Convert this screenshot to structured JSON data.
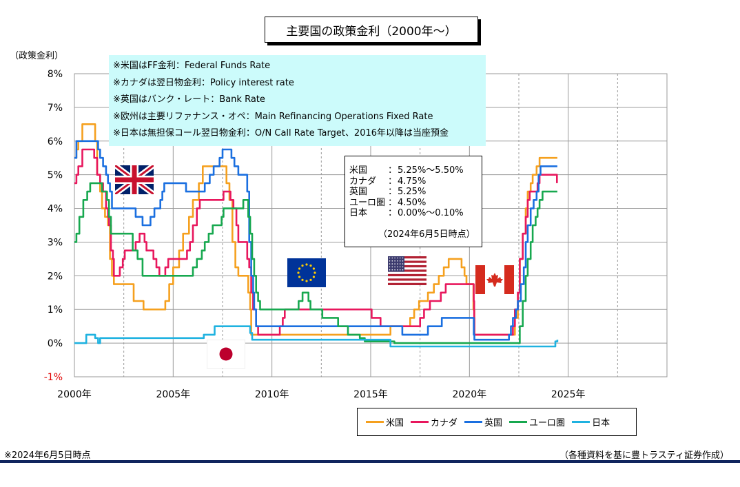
{
  "title": "主要国の政策金利（2000年～）",
  "notes": [
    "※米国はFF金利：Federal Funds Rate",
    "※カナダは翌日物金利：Policy interest rate",
    "※英国はバンク・レート：Bank Rate",
    "※欧州は主要リファナンス・オペ：Main Refinancing Operations Fixed Rate",
    "※日本は無担保コール翌日物金利：O/N Call Rate Target、2016年以降は当座預金"
  ],
  "rates_box": {
    "rows": [
      {
        "name": "米国",
        "sep": "：",
        "value": "5.25%～5.50%"
      },
      {
        "name": "カナダ",
        "sep": "：",
        "value": "4.75%"
      },
      {
        "name": "英国",
        "sep": "：",
        "value": "5.25%"
      },
      {
        "name": "ユーロ圏",
        "sep": "：",
        "value": "4.50%"
      },
      {
        "name": "日本",
        "sep": "：",
        "value": "0.00%～0.10%"
      }
    ],
    "date": "（2024年6月5日時点）"
  },
  "footnote": "※2024年6月5日時点",
  "source": "（各種資料を基に豊トラスティ証券作成）",
  "colors": {
    "us": "#f5a01e",
    "canada": "#e8175d",
    "uk": "#1a6fe0",
    "euro": "#17a84f",
    "japan": "#1fb2e0",
    "grid": "#9a9a9a",
    "notes_bg": "#ccfbfb",
    "rule": "#10255e"
  },
  "flags": [
    "uk-flag-icon",
    "eu-flag-icon",
    "us-flag-icon",
    "canada-flag-icon",
    "japan-flag-icon"
  ],
  "chart_data": {
    "type": "line",
    "title": "主要国の政策金利（2000年～）",
    "ylabel": "（政策金利）",
    "xlabel": "",
    "xlim": [
      2000,
      2030
    ],
    "ylim": [
      -1,
      8
    ],
    "y_ticks": [
      "-1%",
      "0%",
      "1%",
      "2%",
      "3%",
      "4%",
      "5%",
      "6%",
      "7%",
      "8%"
    ],
    "x_ticks": [
      "2000年",
      "2005年",
      "2010年",
      "2015年",
      "2020年",
      "2025年"
    ],
    "x_tick_values": [
      2000,
      2005,
      2010,
      2015,
      2020,
      2025
    ],
    "grid": true,
    "legend_position": "bottom-right",
    "series": [
      {
        "name": "米国",
        "points": [
          [
            2000.0,
            5.5
          ],
          [
            2000.1,
            5.75
          ],
          [
            2000.2,
            6.0
          ],
          [
            2000.4,
            6.5
          ],
          [
            2000.95,
            6.5
          ],
          [
            2001.05,
            6.0
          ],
          [
            2001.15,
            5.0
          ],
          [
            2001.3,
            4.5
          ],
          [
            2001.4,
            4.0
          ],
          [
            2001.55,
            3.75
          ],
          [
            2001.7,
            3.5
          ],
          [
            2001.8,
            2.5
          ],
          [
            2001.9,
            2.0
          ],
          [
            2002.0,
            1.75
          ],
          [
            2002.9,
            1.75
          ],
          [
            2003.0,
            1.25
          ],
          [
            2003.5,
            1.0
          ],
          [
            2004.45,
            1.0
          ],
          [
            2004.6,
            1.25
          ],
          [
            2004.8,
            1.75
          ],
          [
            2005.0,
            2.25
          ],
          [
            2005.3,
            2.75
          ],
          [
            2005.5,
            3.25
          ],
          [
            2005.8,
            3.75
          ],
          [
            2006.0,
            4.25
          ],
          [
            2006.3,
            4.75
          ],
          [
            2006.5,
            5.25
          ],
          [
            2007.6,
            5.25
          ],
          [
            2007.7,
            4.75
          ],
          [
            2007.85,
            4.25
          ],
          [
            2008.0,
            3.0
          ],
          [
            2008.15,
            2.25
          ],
          [
            2008.3,
            2.0
          ],
          [
            2008.8,
            1.5
          ],
          [
            2008.9,
            1.0
          ],
          [
            2008.95,
            0.25
          ],
          [
            2015.9,
            0.25
          ],
          [
            2016.0,
            0.5
          ],
          [
            2016.9,
            0.5
          ],
          [
            2017.0,
            0.75
          ],
          [
            2017.2,
            1.0
          ],
          [
            2017.45,
            1.25
          ],
          [
            2017.9,
            1.5
          ],
          [
            2018.2,
            1.75
          ],
          [
            2018.45,
            2.0
          ],
          [
            2018.7,
            2.25
          ],
          [
            2018.95,
            2.5
          ],
          [
            2019.5,
            2.5
          ],
          [
            2019.6,
            2.25
          ],
          [
            2019.75,
            2.0
          ],
          [
            2019.85,
            1.75
          ],
          [
            2020.15,
            1.75
          ],
          [
            2020.2,
            1.0
          ],
          [
            2020.25,
            0.25
          ],
          [
            2022.15,
            0.25
          ],
          [
            2022.3,
            0.75
          ],
          [
            2022.45,
            1.5
          ],
          [
            2022.55,
            2.5
          ],
          [
            2022.7,
            3.25
          ],
          [
            2022.85,
            4.0
          ],
          [
            2022.95,
            4.5
          ],
          [
            2023.1,
            4.75
          ],
          [
            2023.2,
            5.0
          ],
          [
            2023.4,
            5.25
          ],
          [
            2023.55,
            5.5
          ],
          [
            2024.45,
            5.5
          ]
        ]
      },
      {
        "name": "カナダ",
        "points": [
          [
            2000.0,
            4.75
          ],
          [
            2000.1,
            5.0
          ],
          [
            2000.2,
            5.25
          ],
          [
            2000.4,
            5.75
          ],
          [
            2000.95,
            5.75
          ],
          [
            2001.0,
            5.5
          ],
          [
            2001.15,
            5.0
          ],
          [
            2001.3,
            4.75
          ],
          [
            2001.45,
            4.5
          ],
          [
            2001.6,
            4.0
          ],
          [
            2001.7,
            3.75
          ],
          [
            2001.75,
            3.5
          ],
          [
            2001.85,
            2.75
          ],
          [
            2001.95,
            2.5
          ],
          [
            2002.0,
            2.0
          ],
          [
            2002.3,
            2.25
          ],
          [
            2002.45,
            2.5
          ],
          [
            2002.55,
            2.75
          ],
          [
            2003.1,
            3.0
          ],
          [
            2003.3,
            3.25
          ],
          [
            2003.55,
            3.0
          ],
          [
            2003.65,
            2.75
          ],
          [
            2004.0,
            2.5
          ],
          [
            2004.15,
            2.25
          ],
          [
            2004.3,
            2.0
          ],
          [
            2004.6,
            2.25
          ],
          [
            2004.75,
            2.5
          ],
          [
            2005.7,
            2.75
          ],
          [
            2005.85,
            3.0
          ],
          [
            2006.0,
            3.5
          ],
          [
            2006.2,
            4.0
          ],
          [
            2006.35,
            4.25
          ],
          [
            2007.55,
            4.5
          ],
          [
            2007.9,
            4.25
          ],
          [
            2008.05,
            4.0
          ],
          [
            2008.2,
            3.5
          ],
          [
            2008.3,
            3.0
          ],
          [
            2008.75,
            2.5
          ],
          [
            2008.85,
            2.25
          ],
          [
            2008.95,
            1.5
          ],
          [
            2009.05,
            1.0
          ],
          [
            2009.2,
            0.5
          ],
          [
            2009.3,
            0.25
          ],
          [
            2010.4,
            0.5
          ],
          [
            2010.55,
            0.75
          ],
          [
            2010.65,
            1.0
          ],
          [
            2015.05,
            0.75
          ],
          [
            2015.5,
            0.5
          ],
          [
            2017.5,
            0.75
          ],
          [
            2017.7,
            1.0
          ],
          [
            2018.0,
            1.25
          ],
          [
            2018.55,
            1.5
          ],
          [
            2018.8,
            1.75
          ],
          [
            2020.2,
            1.75
          ],
          [
            2020.22,
            1.25
          ],
          [
            2020.24,
            0.75
          ],
          [
            2020.25,
            0.25
          ],
          [
            2022.15,
            0.25
          ],
          [
            2022.2,
            0.5
          ],
          [
            2022.3,
            1.0
          ],
          [
            2022.45,
            1.5
          ],
          [
            2022.55,
            2.5
          ],
          [
            2022.7,
            3.25
          ],
          [
            2022.85,
            3.75
          ],
          [
            2022.95,
            4.25
          ],
          [
            2023.05,
            4.5
          ],
          [
            2023.45,
            4.75
          ],
          [
            2023.55,
            5.0
          ],
          [
            2024.35,
            5.0
          ],
          [
            2024.43,
            4.75
          ]
        ]
      },
      {
        "name": "英国",
        "points": [
          [
            2000.0,
            5.5
          ],
          [
            2000.1,
            6.0
          ],
          [
            2001.05,
            6.0
          ],
          [
            2001.2,
            5.75
          ],
          [
            2001.3,
            5.5
          ],
          [
            2001.45,
            5.25
          ],
          [
            2001.6,
            5.0
          ],
          [
            2001.7,
            4.75
          ],
          [
            2001.8,
            4.5
          ],
          [
            2001.9,
            4.0
          ],
          [
            2003.05,
            4.0
          ],
          [
            2003.1,
            3.75
          ],
          [
            2003.45,
            3.5
          ],
          [
            2003.85,
            3.75
          ],
          [
            2004.05,
            4.0
          ],
          [
            2004.35,
            4.25
          ],
          [
            2004.45,
            4.5
          ],
          [
            2004.55,
            4.75
          ],
          [
            2005.6,
            4.75
          ],
          [
            2005.65,
            4.5
          ],
          [
            2006.6,
            4.75
          ],
          [
            2006.85,
            5.0
          ],
          [
            2007.05,
            5.25
          ],
          [
            2007.35,
            5.5
          ],
          [
            2007.5,
            5.75
          ],
          [
            2007.95,
            5.5
          ],
          [
            2008.1,
            5.25
          ],
          [
            2008.3,
            5.0
          ],
          [
            2008.75,
            4.5
          ],
          [
            2008.85,
            3.0
          ],
          [
            2008.95,
            2.0
          ],
          [
            2009.05,
            1.5
          ],
          [
            2009.1,
            1.0
          ],
          [
            2009.2,
            0.5
          ],
          [
            2016.55,
            0.5
          ],
          [
            2016.6,
            0.25
          ],
          [
            2017.85,
            0.25
          ],
          [
            2017.9,
            0.5
          ],
          [
            2018.6,
            0.75
          ],
          [
            2020.2,
            0.75
          ],
          [
            2020.22,
            0.25
          ],
          [
            2020.25,
            0.1
          ],
          [
            2021.95,
            0.1
          ],
          [
            2022.0,
            0.25
          ],
          [
            2022.1,
            0.5
          ],
          [
            2022.2,
            0.75
          ],
          [
            2022.35,
            1.0
          ],
          [
            2022.45,
            1.25
          ],
          [
            2022.6,
            1.75
          ],
          [
            2022.75,
            2.25
          ],
          [
            2022.85,
            3.0
          ],
          [
            2022.95,
            3.5
          ],
          [
            2023.1,
            4.0
          ],
          [
            2023.25,
            4.25
          ],
          [
            2023.4,
            4.5
          ],
          [
            2023.5,
            5.0
          ],
          [
            2023.6,
            5.25
          ],
          [
            2024.45,
            5.25
          ]
        ]
      },
      {
        "name": "ユーロ圏",
        "points": [
          [
            2000.0,
            3.0
          ],
          [
            2000.1,
            3.25
          ],
          [
            2000.25,
            3.75
          ],
          [
            2000.45,
            4.25
          ],
          [
            2000.65,
            4.5
          ],
          [
            2000.8,
            4.75
          ],
          [
            2001.35,
            4.75
          ],
          [
            2001.4,
            4.5
          ],
          [
            2001.65,
            4.25
          ],
          [
            2001.75,
            3.75
          ],
          [
            2001.85,
            3.25
          ],
          [
            2002.9,
            3.25
          ],
          [
            2002.95,
            2.75
          ],
          [
            2003.2,
            2.5
          ],
          [
            2003.45,
            2.0
          ],
          [
            2005.95,
            2.0
          ],
          [
            2006.0,
            2.25
          ],
          [
            2006.2,
            2.5
          ],
          [
            2006.45,
            2.75
          ],
          [
            2006.6,
            3.0
          ],
          [
            2006.8,
            3.25
          ],
          [
            2007.0,
            3.5
          ],
          [
            2007.45,
            3.75
          ],
          [
            2007.55,
            4.0
          ],
          [
            2008.5,
            4.0
          ],
          [
            2008.55,
            4.25
          ],
          [
            2008.8,
            3.75
          ],
          [
            2008.9,
            3.25
          ],
          [
            2009.0,
            2.5
          ],
          [
            2009.1,
            2.0
          ],
          [
            2009.2,
            1.5
          ],
          [
            2009.3,
            1.25
          ],
          [
            2009.4,
            1.0
          ],
          [
            2011.3,
            1.0
          ],
          [
            2011.35,
            1.25
          ],
          [
            2011.55,
            1.5
          ],
          [
            2011.85,
            1.25
          ],
          [
            2011.95,
            1.0
          ],
          [
            2012.55,
            0.75
          ],
          [
            2013.35,
            0.5
          ],
          [
            2013.85,
            0.25
          ],
          [
            2014.45,
            0.15
          ],
          [
            2014.7,
            0.05
          ],
          [
            2016.2,
            0.0
          ],
          [
            2022.5,
            0.0
          ],
          [
            2022.55,
            0.5
          ],
          [
            2022.7,
            1.25
          ],
          [
            2022.85,
            2.0
          ],
          [
            2022.95,
            2.5
          ],
          [
            2023.1,
            3.0
          ],
          [
            2023.2,
            3.5
          ],
          [
            2023.35,
            3.75
          ],
          [
            2023.45,
            4.0
          ],
          [
            2023.55,
            4.25
          ],
          [
            2023.7,
            4.5
          ],
          [
            2024.45,
            4.5
          ]
        ]
      },
      {
        "name": "日本",
        "points": [
          [
            2000.0,
            0.0
          ],
          [
            2000.6,
            0.25
          ],
          [
            2001.05,
            0.15
          ],
          [
            2001.2,
            0.0
          ],
          [
            2001.3,
            0.15
          ],
          [
            2006.5,
            0.15
          ],
          [
            2006.55,
            0.25
          ],
          [
            2007.1,
            0.5
          ],
          [
            2008.85,
            0.5
          ],
          [
            2008.9,
            0.3
          ],
          [
            2009.0,
            0.1
          ],
          [
            2015.85,
            0.1
          ],
          [
            2016.0,
            -0.1
          ],
          [
            2024.25,
            -0.1
          ],
          [
            2024.35,
            0.05
          ],
          [
            2024.45,
            0.1
          ]
        ]
      }
    ]
  }
}
